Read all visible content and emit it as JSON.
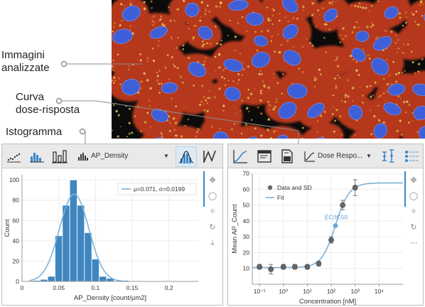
{
  "callouts": {
    "analyzed_images": [
      "Immagini",
      "analizzate"
    ],
    "dose_response": [
      "Curva",
      "dose-risposta"
    ],
    "histogram": "Istogramma"
  },
  "colors": {
    "accent": "#3a86c8",
    "bar": "#3f86c0",
    "fit": "#7cb3dc",
    "overlay": "#b5391e",
    "nuclei": "#3e5fd8"
  },
  "left_panel": {
    "toolbar": {
      "icons": [
        "scatter-plot-icon",
        "dot-histogram-icon",
        "bar-chart-icon",
        "ap-density-histogram-icon",
        "gaussian-curve-icon",
        "peak-line-icon"
      ],
      "selector_label": "AP_Density"
    },
    "side_tools": [
      "move-icon",
      "zoom-icon",
      "magic-wand-icon",
      "refresh-icon",
      "download-icon"
    ]
  },
  "right_panel": {
    "toolbar": {
      "icons": [
        "curve-chart-icon",
        "table-window-icon",
        "report-icon",
        "dose-response-curve-icon",
        "error-bars-icon",
        "list-options-icon"
      ],
      "selector_label": "Dose Respo..."
    },
    "side_tools": [
      "move-icon",
      "zoom-icon",
      "magic-wand-icon",
      "refresh-icon",
      "more-icon"
    ]
  },
  "chart_data": [
    {
      "type": "bar",
      "xlabel": "AP_Density [count/µm2]",
      "ylabel": "Count",
      "xlim": [
        0,
        0.24
      ],
      "ylim": [
        0,
        105
      ],
      "x_ticks": [
        "0",
        "0.05",
        "0.1",
        "0.15",
        "0.2"
      ],
      "x_tick_values": [
        0,
        0.05,
        0.1,
        0.15,
        0.2
      ],
      "y_ticks": [
        "0",
        "20",
        "40",
        "60",
        "80",
        "100"
      ],
      "y_tick_values": [
        0,
        20,
        40,
        60,
        80,
        100
      ],
      "bin_width": 0.01,
      "bins": [
        0.01,
        0.02,
        0.03,
        0.04,
        0.05,
        0.06,
        0.07,
        0.08,
        0.09,
        0.1,
        0.11,
        0.12,
        0.13,
        0.14
      ],
      "values": [
        0,
        1,
        2,
        5,
        45,
        75,
        100,
        75,
        48,
        22,
        5,
        3,
        0,
        1
      ],
      "fit": {
        "name": "μ=0.071, σ=0.0199",
        "mu": 0.071,
        "sigma": 0.0199,
        "peak": 86
      },
      "legend": "top-right",
      "grid": true
    },
    {
      "type": "scatter",
      "xlabel": "Concentration [nM]",
      "ylabel": "Mean AP_Count",
      "xscale": "log",
      "xlim": [
        0.05,
        100000
      ],
      "ylim": [
        0,
        70
      ],
      "x_ticks": [
        "10⁻¹",
        "10⁰",
        "10¹",
        "10²",
        "10³",
        "10⁴"
      ],
      "x_tick_values": [
        0.1,
        1,
        10,
        100,
        1000,
        10000
      ],
      "y_ticks": [
        "10",
        "20",
        "30",
        "40",
        "50",
        "60",
        "70"
      ],
      "y_tick_values": [
        10,
        20,
        30,
        40,
        50,
        60,
        70
      ],
      "series": [
        {
          "name": "Data and SD",
          "x": [
            0.1,
            0.3,
            1,
            3,
            10,
            30,
            100,
            300,
            1000
          ],
          "y": [
            11,
            9.5,
            11,
            11,
            11,
            13,
            28,
            50,
            61
          ],
          "sd": [
            1.5,
            3,
            1.5,
            1.5,
            1.5,
            1.5,
            2,
            3,
            5
          ]
        },
        {
          "name": "Fit",
          "bottom": 10.5,
          "top": 64,
          "ec50": 150,
          "hill": 1.5
        }
      ],
      "annotation": {
        "label": "EC/IC50",
        "x": 150,
        "y": 37
      },
      "legend": "top-left",
      "grid": true
    }
  ]
}
